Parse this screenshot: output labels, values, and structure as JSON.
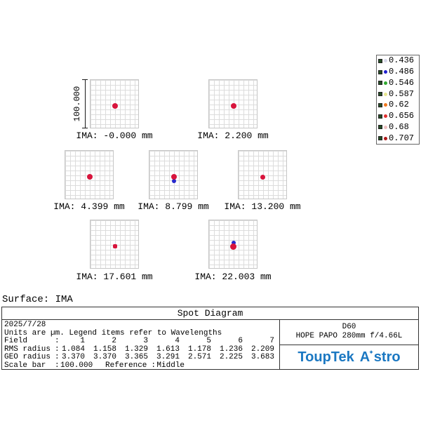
{
  "chart_data": {
    "type": "scatter",
    "title": "Spot Diagram",
    "surface": "IMA",
    "date": "2025/7/28",
    "units": "µm",
    "legend_note": "Units are µm. Legend items refer to Wavelengths",
    "wavelengths_um": [
      0.436,
      0.486,
      0.546,
      0.587,
      0.62,
      0.656,
      0.68,
      0.707
    ],
    "fields": [
      1,
      2,
      3,
      4,
      5,
      6,
      7
    ],
    "ima_positions_mm": [
      -0.0,
      2.2,
      4.399,
      8.799,
      13.2,
      17.601,
      22.003
    ],
    "rms_radius_um": [
      1.084,
      1.158,
      1.329,
      1.613,
      1.178,
      1.236,
      2.209
    ],
    "geo_radius_um": [
      3.37,
      3.37,
      3.365,
      3.291,
      2.571,
      2.225,
      3.683
    ],
    "scale_bar_um": 100.0,
    "reference": "Middle",
    "system": "D60 HOPE PAPO 280mm f/4.66L",
    "brand": "ToupTek Astro"
  },
  "spot_color": "#d8143c",
  "fringe_color": "#2828cc",
  "scale_bar": {
    "label": "100.000"
  },
  "panels": [
    {
      "label": "IMA: -0.000 mm"
    },
    {
      "label": "IMA: 2.200 mm"
    },
    {
      "label": "IMA: 4.399 mm"
    },
    {
      "label": "IMA: 8.799 mm"
    },
    {
      "label": "IMA: 13.200 mm"
    },
    {
      "label": "IMA: 17.601 mm"
    },
    {
      "label": "IMA: 22.003 mm"
    }
  ],
  "legend": {
    "items": [
      {
        "value": "0.436",
        "color": "#d8d8ea"
      },
      {
        "value": "0.486",
        "color": "#2020d0"
      },
      {
        "value": "0.546",
        "color": "#30a830"
      },
      {
        "value": "0.587",
        "color": "#e8e690"
      },
      {
        "value": "0.62",
        "color": "#f07820"
      },
      {
        "value": "0.656",
        "color": "#e03030"
      },
      {
        "value": "0.68",
        "color": "#efc0c0"
      },
      {
        "value": "0.707",
        "color": "#b01818"
      }
    ]
  },
  "surface_label": "Surface: IMA",
  "table": {
    "title": "Spot Diagram",
    "date": "2025/7/28",
    "units_note": "Units are µm. Legend items refer to Wavelengths",
    "colon": ":",
    "rows": [
      {
        "label": "Field",
        "values": [
          "1",
          "2",
          "3",
          "4",
          "5",
          "6",
          "7"
        ]
      },
      {
        "label": "RMS radius",
        "values": [
          "1.084",
          "1.158",
          "1.329",
          "1.613",
          "1.178",
          "1.236",
          "2.209"
        ]
      },
      {
        "label": "GEO radius",
        "values": [
          "3.370",
          "3.370",
          "3.365",
          "3.291",
          "2.571",
          "2.225",
          "3.683"
        ]
      }
    ],
    "scale_row": {
      "label": "Scale bar",
      "value": "100.000",
      "reference_label": "Reference",
      "reference_value": "Middle"
    },
    "system": {
      "line1": "D60",
      "line2": "HOPE PAPO 280mm f/4.66L"
    },
    "brand": {
      "part1": "ToupTek",
      "a": "A",
      "star": "✦",
      "rest": "stro",
      "color": "#1b78c2"
    }
  }
}
